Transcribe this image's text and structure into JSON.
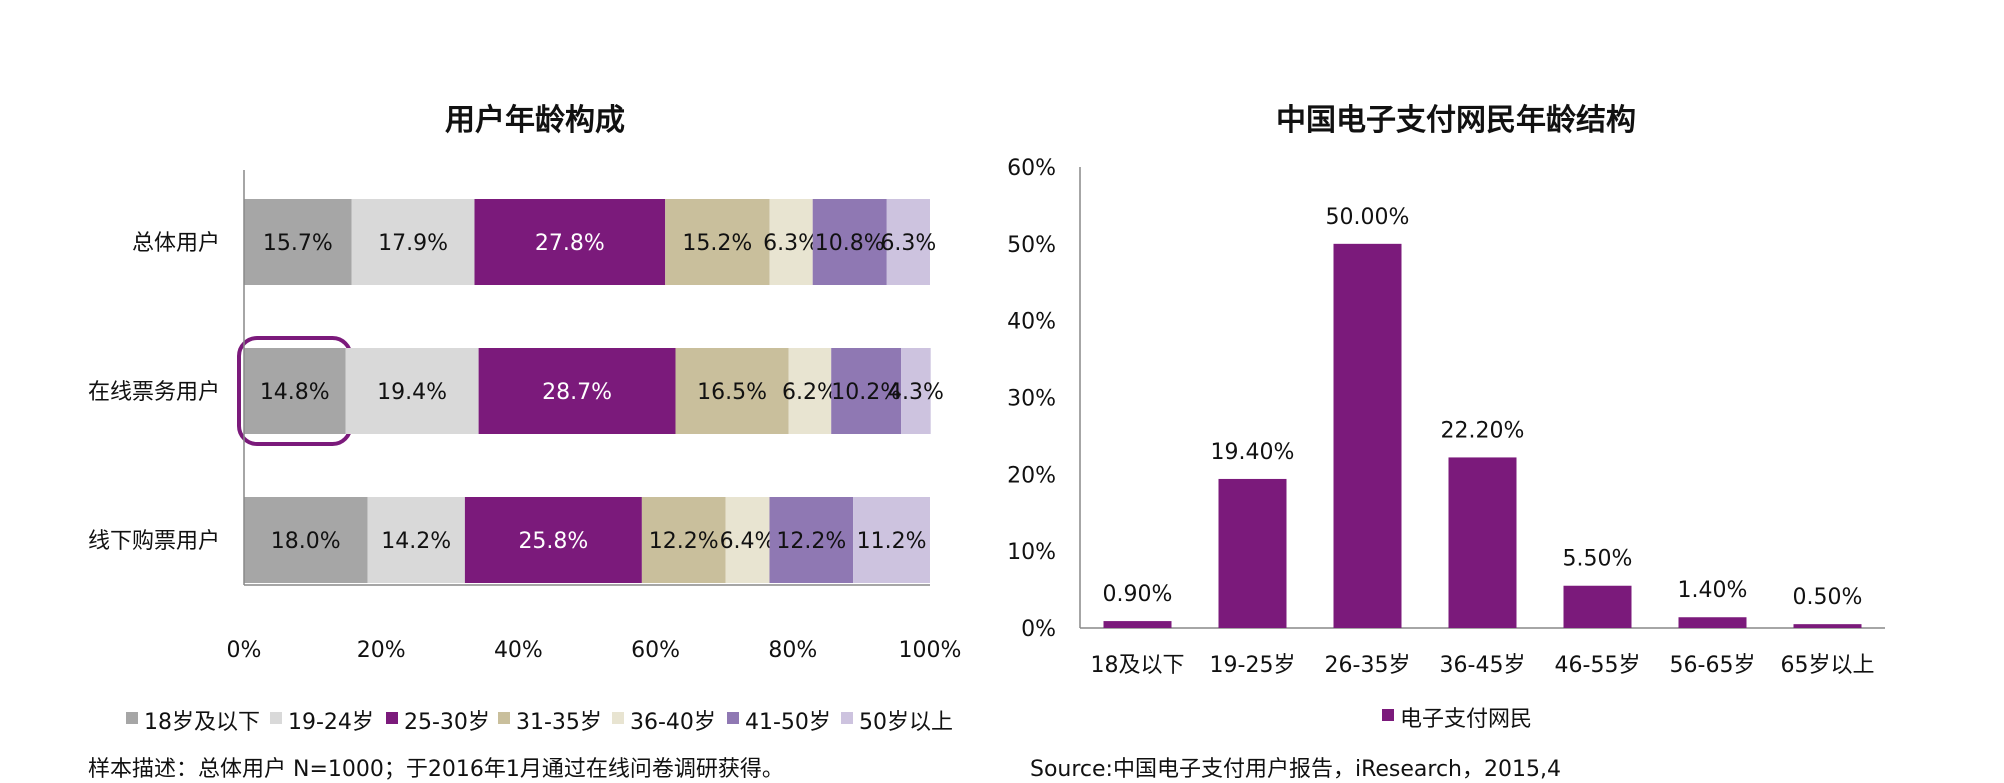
{
  "chart_data": [
    {
      "type": "bar",
      "orientation": "horizontal",
      "stacked": true,
      "title": "用户年龄构成",
      "categories": [
        "总体用户",
        "在线票务用户",
        "线下购票用户"
      ],
      "x_ticks": [
        "0%",
        "20%",
        "40%",
        "60%",
        "80%",
        "100%"
      ],
      "xlim": [
        0,
        100
      ],
      "legend_position": "bottom",
      "highlighted": {
        "category": "在线票务用户",
        "series": "18岁及以下"
      },
      "series": [
        {
          "name": "18岁及以下",
          "color": "#a6a6a6",
          "label_color": "#111111",
          "values": [
            15.7,
            14.8,
            18.0
          ],
          "labels": [
            "15.7%",
            "14.8%",
            "18.0%"
          ]
        },
        {
          "name": "19-24岁",
          "color": "#d9d9d9",
          "label_color": "#111111",
          "values": [
            17.9,
            19.4,
            14.2
          ],
          "labels": [
            "17.9%",
            "19.4%",
            "14.2%"
          ]
        },
        {
          "name": "25-30岁",
          "color": "#7b1a7b",
          "label_color": "#ffffff",
          "values": [
            27.8,
            28.7,
            25.8
          ],
          "labels": [
            "27.8%",
            "28.7%",
            "25.8%"
          ]
        },
        {
          "name": "31-35岁",
          "color": "#c9bf9c",
          "label_color": "#111111",
          "values": [
            15.2,
            16.5,
            12.2
          ],
          "labels": [
            "15.2%",
            "16.5%",
            "12.2%"
          ]
        },
        {
          "name": "36-40岁",
          "color": "#e8e4d1",
          "label_color": "#111111",
          "values": [
            6.3,
            6.2,
            6.4
          ],
          "labels": [
            "6.3%",
            "6.2%",
            "6.4%"
          ]
        },
        {
          "name": "41-50岁",
          "color": "#8f78b3",
          "label_color": "#111111",
          "values": [
            10.8,
            10.2,
            12.2
          ],
          "labels": [
            "10.8%",
            "10.2%",
            "12.2%"
          ]
        },
        {
          "name": "50岁以上",
          "color": "#cdc3df",
          "label_color": "#111111",
          "values": [
            6.3,
            4.3,
            11.2
          ],
          "labels": [
            "6.3%",
            "4.3%",
            "11.2%"
          ]
        }
      ]
    },
    {
      "type": "bar",
      "title": "中国电子支付网民年龄结构",
      "categories": [
        "18及以下",
        "19-25岁",
        "26-35岁",
        "36-45岁",
        "46-55岁",
        "56-65岁",
        "65岁以上"
      ],
      "series": [
        {
          "name": "电子支付网民",
          "color": "#7b1a7b",
          "values": [
            0.9,
            19.4,
            50.0,
            22.2,
            5.5,
            1.4,
            0.5
          ],
          "labels": [
            "0.90%",
            "19.40%",
            "50.00%",
            "22.20%",
            "5.50%",
            "1.40%",
            "0.50%"
          ]
        }
      ],
      "y_ticks": [
        "0%",
        "10%",
        "20%",
        "30%",
        "40%",
        "50%",
        "60%"
      ],
      "ylim": [
        0,
        60
      ],
      "legend_position": "bottom"
    }
  ],
  "notes": {
    "left": "样本描述：总体用户 N=1000；于2016年1月通过在线问卷调研获得。",
    "right": "Source:中国电子支付用户报告，iResearch，2015,4"
  }
}
